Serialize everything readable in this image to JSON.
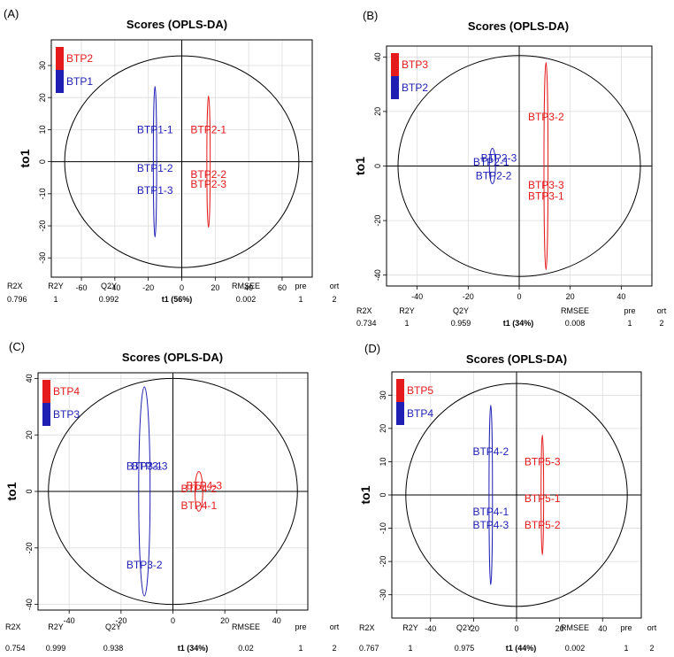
{
  "chart_data": [
    {
      "panel_label": "(A)",
      "type": "scatter",
      "title": "Scores (OPLS-DA)",
      "xlabel": "t1 (56%)",
      "ylabel": "to1",
      "xlim": [
        -78,
        78
      ],
      "ylim": [
        -36,
        38
      ],
      "xticks": [
        -60,
        -40,
        -20,
        0,
        20,
        40,
        60
      ],
      "yticks": [
        -30,
        -20,
        -10,
        0,
        10,
        20,
        30
      ],
      "grid": true,
      "ellipse": {
        "cx": 0,
        "cy": 0,
        "rx": 70,
        "ry": 33
      },
      "legend": [
        {
          "name": "BTP2",
          "color": "#e41a1c"
        },
        {
          "name": "BTP1",
          "color": "#1f1fb4"
        }
      ],
      "groups": [
        {
          "name": "BTP1",
          "color": "#1f1fb4",
          "center": [
            -16,
            0
          ],
          "half_width": 1,
          "half_height": 23.5,
          "labels": [
            {
              "text": "BTP1-1",
              "x": -16,
              "y": 10
            },
            {
              "text": "BTP1-2",
              "x": -16,
              "y": -2
            },
            {
              "text": "BTP1-3",
              "x": -16,
              "y": -9
            }
          ]
        },
        {
          "name": "BTP2",
          "color": "#e41a1c",
          "center": [
            16,
            0
          ],
          "half_width": 1,
          "half_height": 20.5,
          "labels": [
            {
              "text": "BTP2-1",
              "x": 16,
              "y": 10
            },
            {
              "text": "BTP2-2",
              "x": 16,
              "y": -4
            },
            {
              "text": "BTP2-3",
              "x": 16,
              "y": -7
            }
          ]
        }
      ],
      "stats": {
        "headers": [
          "R2X",
          "R2Y",
          "Q2Y",
          "RMSEE",
          "pre",
          "ort"
        ],
        "values": [
          "0.796",
          "1",
          "0.992",
          "0.002",
          "1",
          "2"
        ]
      }
    },
    {
      "panel_label": "(B)",
      "type": "scatter",
      "title": "Scores (OPLS-DA)",
      "xlabel": "t1 (34%)",
      "ylabel": "to1",
      "xlim": [
        -52,
        52
      ],
      "ylim": [
        -44,
        44
      ],
      "xticks": [
        -40,
        -20,
        0,
        20,
        40
      ],
      "yticks": [
        -40,
        -20,
        0,
        20,
        40
      ],
      "grid": true,
      "ellipse": {
        "cx": 0,
        "cy": 0,
        "rx": 47.5,
        "ry": 40.5
      },
      "legend": [
        {
          "name": "BTP3",
          "color": "#e41a1c"
        },
        {
          "name": "BTP2",
          "color": "#1f1fb4"
        }
      ],
      "groups": [
        {
          "name": "BTP2",
          "color": "#1f1fb4",
          "center": [
            -10.5,
            0
          ],
          "half_width": 1.2,
          "half_height": 6.5,
          "labels": [
            {
              "text": "BTP2-3",
              "x": -8,
              "y": 3
            },
            {
              "text": "BTP2-1",
              "x": -11,
              "y": 1.5
            },
            {
              "text": "BTP2-2",
              "x": -10,
              "y": -3.5
            }
          ]
        },
        {
          "name": "BTP3",
          "color": "#e41a1c",
          "center": [
            10.5,
            0
          ],
          "half_width": 0.8,
          "half_height": 38,
          "labels": [
            {
              "text": "BTP3-2",
              "x": 10.5,
              "y": 18
            },
            {
              "text": "BTP3-3",
              "x": 10.5,
              "y": -7
            },
            {
              "text": "BTP3-1",
              "x": 10.5,
              "y": -11
            }
          ]
        }
      ],
      "stats": {
        "headers": [
          "R2X",
          "R2Y",
          "Q2Y",
          "RMSEE",
          "pre",
          "ort"
        ],
        "values": [
          "0.734",
          "1",
          "0.959",
          "0.008",
          "1",
          "2"
        ]
      }
    },
    {
      "panel_label": "(C)",
      "type": "scatter",
      "title": "Scores (OPLS-DA)",
      "xlabel": "t1 (34%)",
      "ylabel": "to1",
      "xlim": [
        -52,
        52
      ],
      "ylim": [
        -42,
        42
      ],
      "xticks": [
        -40,
        -20,
        0,
        20,
        40
      ],
      "yticks": [
        -40,
        -20,
        0,
        20,
        40
      ],
      "grid": true,
      "ellipse": {
        "cx": 0,
        "cy": 0,
        "rx": 48,
        "ry": 40
      },
      "legend": [
        {
          "name": "BTP4",
          "color": "#e41a1c"
        },
        {
          "name": "BTP3",
          "color": "#1f1fb4"
        }
      ],
      "groups": [
        {
          "name": "BTP3",
          "color": "#1f1fb4",
          "center": [
            -11,
            0
          ],
          "half_width": 2.2,
          "half_height": 37,
          "labels": [
            {
              "text": "BTP3-3",
              "x": -9,
              "y": 9
            },
            {
              "text": "BTP3-1",
              "x": -11,
              "y": 9
            },
            {
              "text": "BTP3-2",
              "x": -11,
              "y": -26
            }
          ]
        },
        {
          "name": "BTP4",
          "color": "#e41a1c",
          "center": [
            10,
            0
          ],
          "half_width": 1.5,
          "half_height": 7,
          "labels": [
            {
              "text": "BTP4-3",
              "x": 12,
              "y": 2
            },
            {
              "text": "BTP4-2",
              "x": 10,
              "y": 1
            },
            {
              "text": "BTP4-1",
              "x": 10,
              "y": -5
            }
          ]
        }
      ],
      "stats": {
        "headers": [
          "R2X",
          "R2Y",
          "Q2Y",
          "RMSEE",
          "pre",
          "ort"
        ],
        "values": [
          "0.754",
          "0.999",
          "0.938",
          "0.02",
          "1",
          "2"
        ]
      }
    },
    {
      "panel_label": "(D)",
      "type": "scatter",
      "title": "Scores (OPLS-DA)",
      "xlabel": "t1 (44%)",
      "ylabel": "to1",
      "xlim": [
        -58,
        58
      ],
      "ylim": [
        -37,
        37
      ],
      "xticks": [
        -40,
        -20,
        0,
        20,
        40
      ],
      "yticks": [
        -30,
        -20,
        -10,
        0,
        10,
        20,
        30
      ],
      "grid": true,
      "ellipse": {
        "cx": 0,
        "cy": 0,
        "rx": 51.5,
        "ry": 33.5
      },
      "legend": [
        {
          "name": "BTP5",
          "color": "#e41a1c"
        },
        {
          "name": "BTP4",
          "color": "#1f1fb4"
        }
      ],
      "groups": [
        {
          "name": "BTP4",
          "color": "#1f1fb4",
          "center": [
            -12,
            0
          ],
          "half_width": 0.8,
          "half_height": 27,
          "labels": [
            {
              "text": "BTP4-2",
              "x": -12,
              "y": 13
            },
            {
              "text": "BTP4-1",
              "x": -12,
              "y": -5
            },
            {
              "text": "BTP4-3",
              "x": -12,
              "y": -9
            }
          ]
        },
        {
          "name": "BTP5",
          "color": "#e41a1c",
          "center": [
            12,
            0
          ],
          "half_width": 0.6,
          "half_height": 18,
          "labels": [
            {
              "text": "BTP5-3",
              "x": 12,
              "y": 10
            },
            {
              "text": "BTP5-1",
              "x": 12,
              "y": -1
            },
            {
              "text": "BTP5-2",
              "x": 12,
              "y": -9
            }
          ]
        }
      ],
      "stats": {
        "headers": [
          "R2X",
          "R2Y",
          "Q2Y",
          "RMSEE",
          "pre",
          "ort"
        ],
        "values": [
          "0.767",
          "1",
          "0.975",
          "0.002",
          "1",
          "2"
        ]
      }
    }
  ]
}
